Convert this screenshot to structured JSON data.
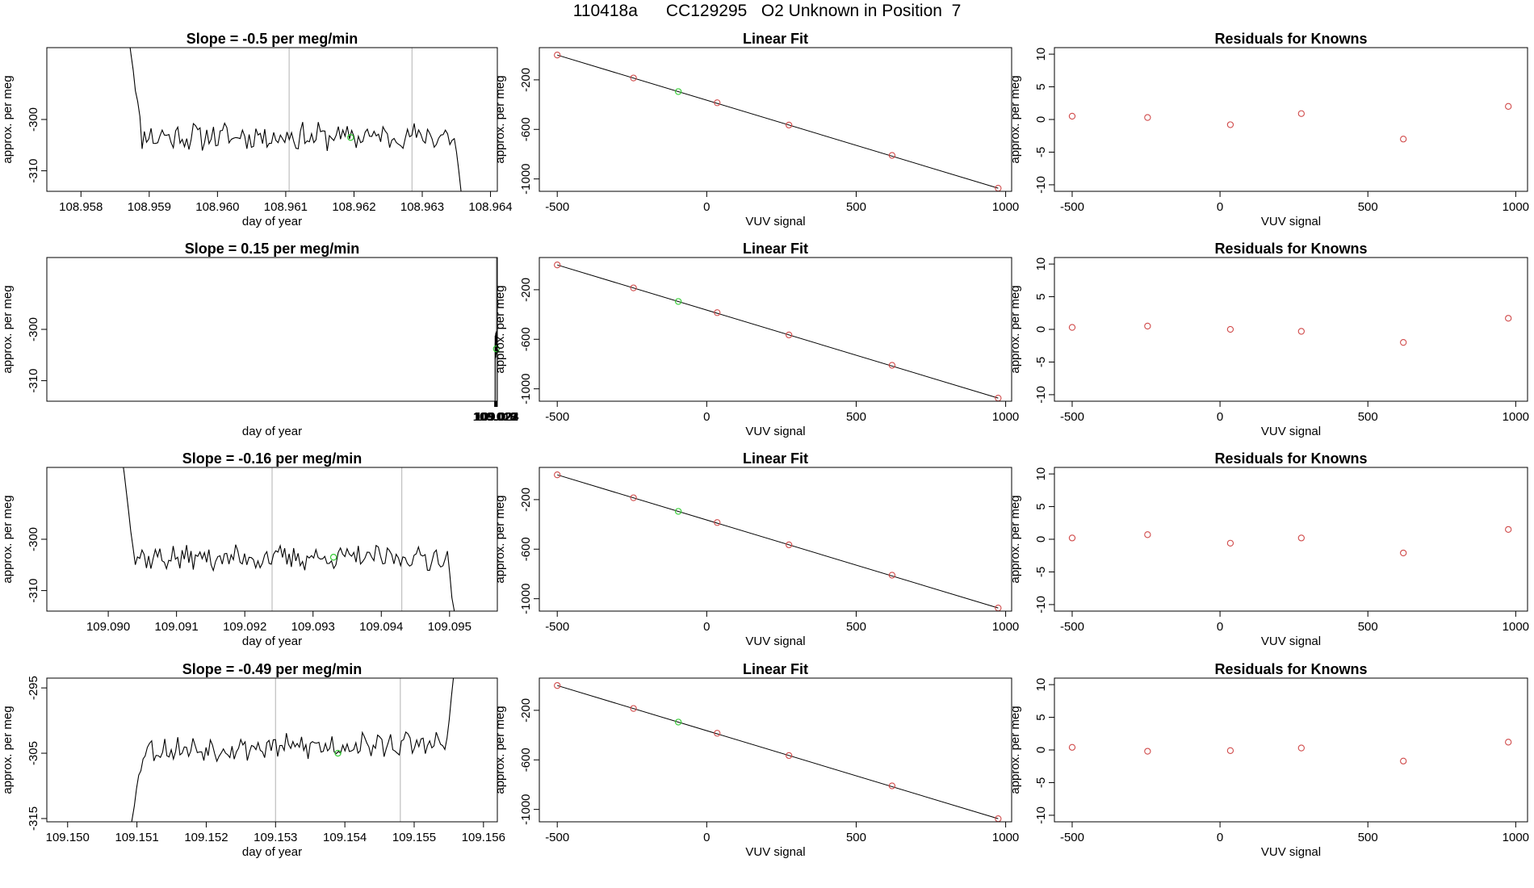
{
  "title": "110418a      CC129295   O2 Unknown in Position  7",
  "colors": {
    "line": "#000000",
    "residual": "#d04a4a",
    "highlight": "#33cc33",
    "vline": "#bfbfbf",
    "box": "#000000"
  },
  "chart_data": [
    {
      "row": 1,
      "time_series": {
        "type": "line",
        "title": "Slope =  -0.5  per meg/min",
        "xlabel": "day of year",
        "ylabel": "approx. per meg",
        "xlim": [
          108.9575,
          108.9641
        ],
        "ylim": [
          -314,
          -286
        ],
        "xticks": [
          "108.958",
          "108.959",
          "108.960",
          "108.961",
          "108.962",
          "108.963",
          "108.964"
        ],
        "yticks": [
          "-300",
          "-310"
        ],
        "vlines": [
          108.96105,
          108.96285
        ],
        "unknown_point": {
          "x": 108.96195,
          "y": -303.5
        },
        "start": 108.9587,
        "end": 108.9636,
        "baseline": -303.3,
        "drift": 0.0,
        "noise": 2.2,
        "entry_from": -284,
        "exit_to": -318,
        "seed": 11
      },
      "linear_fit": {
        "type": "scatter",
        "title": "Linear Fit",
        "xlabel": "VUV signal",
        "ylabel": "approx. per meg",
        "xlim": [
          -560,
          1020
        ],
        "ylim": [
          -1100,
          60
        ],
        "xticks": [
          "-500",
          "0",
          "500",
          "1000"
        ],
        "yticks": [
          "-200",
          "-600",
          "-1000"
        ],
        "knowns": [
          {
            "x": -500,
            "y": 0
          },
          {
            "x": -245,
            "y": -185
          },
          {
            "x": 35,
            "y": -385
          },
          {
            "x": 275,
            "y": -565
          },
          {
            "x": 620,
            "y": -810
          },
          {
            "x": 975,
            "y": -1075
          }
        ],
        "unknown": {
          "x": -95,
          "y": -295
        },
        "fit_line": {
          "x0": -500,
          "y0": 0,
          "x1": 975,
          "y1": -1075
        }
      },
      "residuals": {
        "type": "scatter",
        "title": "Residuals for Knowns",
        "xlabel": "VUV signal",
        "xlim": [
          -560,
          1040
        ],
        "ylim": [
          -11,
          11
        ],
        "xticks": [
          "-500",
          "0",
          "500",
          "1000"
        ],
        "yticks": [
          "10",
          "5",
          "0",
          "-5",
          "-10"
        ],
        "x": [
          -500,
          -245,
          35,
          275,
          620,
          975
        ],
        "y": [
          0.5,
          0.3,
          -0.8,
          0.9,
          -3.0,
          2.0
        ]
      }
    },
    {
      "row": 2,
      "time_series": {
        "type": "line",
        "title": "Slope =  0.15  per meg/min",
        "xlabel": "day of year",
        "ylabel": "approx. per meg",
        "xlim": [
          108.0175,
          109.0241
        ],
        "ylim": [
          -314,
          -286
        ],
        "xticks": [
          "109.018",
          "109.019",
          "109.020",
          "109.021",
          "109.022",
          "109.023",
          "109.024"
        ],
        "yticks": [
          "-300",
          "-310"
        ],
        "vlines": [
          109.021,
          109.0228
        ],
        "unknown_point": {
          "x": 109.0219,
          "y": -303.8
        },
        "start": 109.0189,
        "end": 109.0236,
        "baseline": -303.5,
        "drift": 1.2,
        "noise": 1.9,
        "entry_from": -318,
        "exit_to": -284,
        "seed": 23
      },
      "linear_fit": {
        "type": "scatter",
        "title": "Linear Fit",
        "xlabel": "VUV signal",
        "ylabel": "approx. per meg",
        "xlim": [
          -560,
          1020
        ],
        "ylim": [
          -1100,
          60
        ],
        "xticks": [
          "-500",
          "0",
          "500",
          "1000"
        ],
        "yticks": [
          "-200",
          "-600",
          "-1000"
        ],
        "knowns": [
          {
            "x": -500,
            "y": 0
          },
          {
            "x": -245,
            "y": -185
          },
          {
            "x": 35,
            "y": -385
          },
          {
            "x": 275,
            "y": -565
          },
          {
            "x": 620,
            "y": -810
          },
          {
            "x": 975,
            "y": -1075
          }
        ],
        "unknown": {
          "x": -95,
          "y": -295
        },
        "fit_line": {
          "x0": -500,
          "y0": 0,
          "x1": 975,
          "y1": -1075
        }
      },
      "residuals": {
        "type": "scatter",
        "title": "Residuals for Knowns",
        "xlabel": "VUV signal",
        "xlim": [
          -560,
          1040
        ],
        "ylim": [
          -11,
          11
        ],
        "xticks": [
          "-500",
          "0",
          "500",
          "1000"
        ],
        "yticks": [
          "10",
          "5",
          "0",
          "-5",
          "-10"
        ],
        "x": [
          -500,
          -245,
          35,
          275,
          620,
          975
        ],
        "y": [
          0.3,
          0.5,
          0.0,
          -0.3,
          -2.0,
          1.7
        ]
      }
    },
    {
      "row": 3,
      "time_series": {
        "type": "line",
        "title": "Slope =  -0.16  per meg/min",
        "xlabel": "day of year",
        "ylabel": "approx. per meg",
        "xlim": [
          109.0891,
          109.0957
        ],
        "ylim": [
          -314,
          -286
        ],
        "xticks": [
          "109.090",
          "109.091",
          "109.092",
          "109.093",
          "109.094",
          "109.095"
        ],
        "yticks": [
          "-300",
          "-310"
        ],
        "vlines": [
          109.0924,
          109.0943
        ],
        "unknown_point": {
          "x": 109.0933,
          "y": -303.5
        },
        "start": 109.0902,
        "end": 109.0951,
        "baseline": -303.6,
        "drift": 0.0,
        "noise": 2.0,
        "entry_from": -284,
        "exit_to": -318,
        "seed": 37
      },
      "linear_fit": {
        "type": "scatter",
        "title": "Linear Fit",
        "xlabel": "VUV signal",
        "ylabel": "approx. per meg",
        "xlim": [
          -560,
          1020
        ],
        "ylim": [
          -1100,
          60
        ],
        "xticks": [
          "-500",
          "0",
          "500",
          "1000"
        ],
        "yticks": [
          "-200",
          "-600",
          "-1000"
        ],
        "knowns": [
          {
            "x": -500,
            "y": 0
          },
          {
            "x": -245,
            "y": -185
          },
          {
            "x": 35,
            "y": -385
          },
          {
            "x": 275,
            "y": -565
          },
          {
            "x": 620,
            "y": -810
          },
          {
            "x": 975,
            "y": -1075
          }
        ],
        "unknown": {
          "x": -95,
          "y": -295
        },
        "fit_line": {
          "x0": -500,
          "y0": 0,
          "x1": 975,
          "y1": -1075
        }
      },
      "residuals": {
        "type": "scatter",
        "title": "Residuals for Knowns",
        "xlabel": "VUV signal",
        "xlim": [
          -560,
          1040
        ],
        "ylim": [
          -11,
          11
        ],
        "xticks": [
          "-500",
          "0",
          "500",
          "1000"
        ],
        "yticks": [
          "10",
          "5",
          "0",
          "-5",
          "-10"
        ],
        "x": [
          -500,
          -245,
          35,
          275,
          620,
          975
        ],
        "y": [
          0.2,
          0.7,
          -0.6,
          0.2,
          -2.1,
          1.5
        ]
      }
    },
    {
      "row": 4,
      "time_series": {
        "type": "line",
        "title": "Slope =  -0.49  per meg/min",
        "xlabel": "day of year",
        "ylabel": "approx. per meg",
        "xlim": [
          109.1497,
          109.1562
        ],
        "ylim": [
          -315.5,
          -293.5
        ],
        "xticks": [
          "109.150",
          "109.151",
          "109.152",
          "109.153",
          "109.154",
          "109.155",
          "109.156"
        ],
        "yticks": [
          "-295",
          "-305",
          "-315"
        ],
        "vlines": [
          109.153,
          109.1548
        ],
        "unknown_point": {
          "x": 109.1539,
          "y": -305.0
        },
        "start": 109.1509,
        "end": 109.1556,
        "baseline": -304.5,
        "drift": 1.0,
        "noise": 1.6,
        "entry_from": -317,
        "exit_to": -290,
        "seed": 53
      },
      "linear_fit": {
        "type": "scatter",
        "title": "Linear Fit",
        "xlabel": "VUV signal",
        "ylabel": "approx. per meg",
        "xlim": [
          -560,
          1020
        ],
        "ylim": [
          -1100,
          60
        ],
        "xticks": [
          "-500",
          "0",
          "500",
          "1000"
        ],
        "yticks": [
          "-200",
          "-600",
          "-1000"
        ],
        "knowns": [
          {
            "x": -500,
            "y": 0
          },
          {
            "x": -245,
            "y": -185
          },
          {
            "x": 35,
            "y": -385
          },
          {
            "x": 275,
            "y": -565
          },
          {
            "x": 620,
            "y": -810
          },
          {
            "x": 975,
            "y": -1075
          }
        ],
        "unknown": {
          "x": -95,
          "y": -295
        },
        "fit_line": {
          "x0": -500,
          "y0": 0,
          "x1": 975,
          "y1": -1075
        }
      },
      "residuals": {
        "type": "scatter",
        "title": "Residuals for Knowns",
        "xlabel": "VUV signal",
        "xlim": [
          -560,
          1040
        ],
        "ylim": [
          -11,
          11
        ],
        "xticks": [
          "-500",
          "0",
          "500",
          "1000"
        ],
        "yticks": [
          "10",
          "5",
          "0",
          "-5",
          "-10"
        ],
        "x": [
          -500,
          -245,
          35,
          275,
          620,
          975
        ],
        "y": [
          0.4,
          -0.2,
          -0.1,
          0.3,
          -1.7,
          1.2
        ]
      }
    }
  ]
}
